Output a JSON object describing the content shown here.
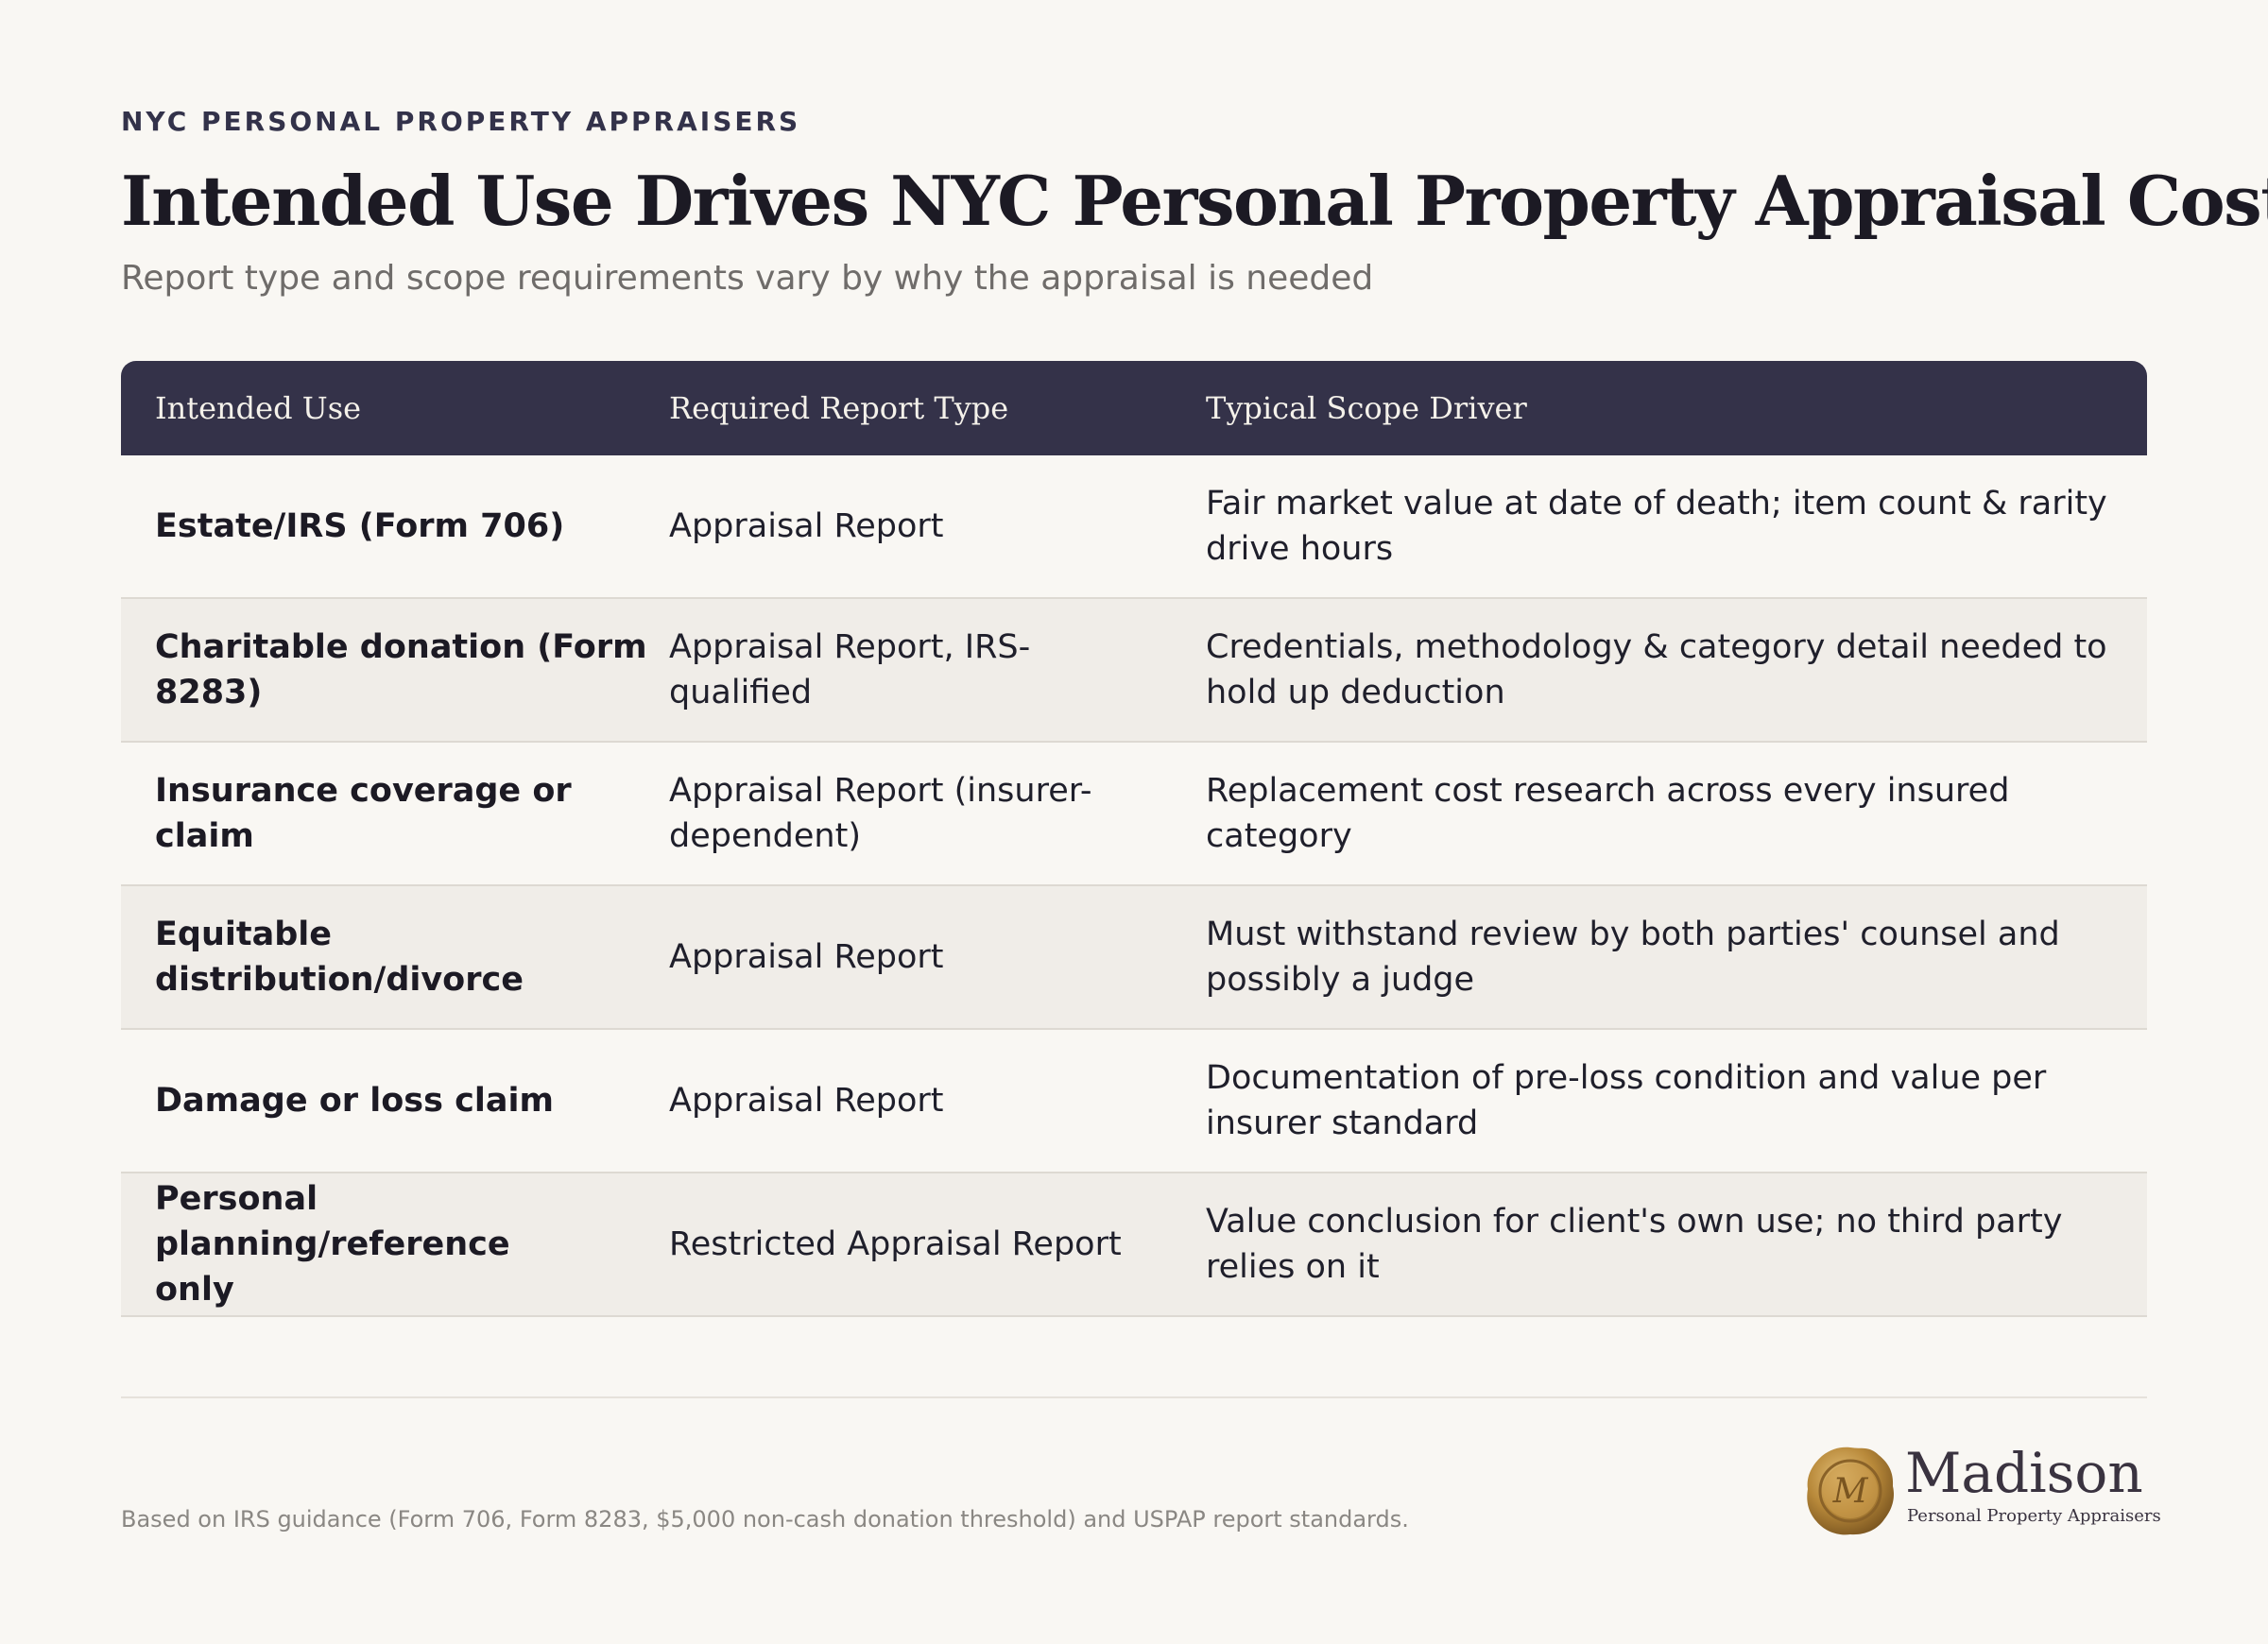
{
  "header": {
    "eyebrow": "NYC PERSONAL PROPERTY APPRAISERS",
    "title": "Intended Use Drives NYC Personal Property Appraisal Cost",
    "subtitle": "Report type and scope requirements vary by why the appraisal is needed"
  },
  "table": {
    "columns": [
      "Intended Use",
      "Required Report Type",
      "Typical Scope Driver"
    ],
    "rows": [
      {
        "use_lines": [
          "Estate/IRS (Form 706)"
        ],
        "type_lines": [
          "Appraisal Report"
        ],
        "scope_lines": [
          "Fair market value at date of death; item count & rarity",
          "drive hours"
        ]
      },
      {
        "use_lines": [
          "Charitable donation (Form",
          "8283)"
        ],
        "type_lines": [
          "Appraisal Report, IRS-",
          "qualified"
        ],
        "scope_lines": [
          "Credentials, methodology & category detail needed to",
          "hold up deduction"
        ]
      },
      {
        "use_lines": [
          "Insurance coverage or claim"
        ],
        "type_lines": [
          "Appraisal Report (insurer-",
          "dependent)"
        ],
        "scope_lines": [
          "Replacement cost research across every insured",
          "category"
        ]
      },
      {
        "use_lines": [
          "Equitable",
          "distribution/divorce"
        ],
        "type_lines": [
          "Appraisal Report"
        ],
        "scope_lines": [
          "Must withstand review by both parties' counsel and",
          "possibly a judge"
        ]
      },
      {
        "use_lines": [
          "Damage or loss claim"
        ],
        "type_lines": [
          "Appraisal Report"
        ],
        "scope_lines": [
          "Documentation of pre-loss condition and value per",
          "insurer standard"
        ]
      },
      {
        "use_lines": [
          "Personal planning/reference",
          "only"
        ],
        "type_lines": [
          "Restricted Appraisal Report"
        ],
        "scope_lines": [
          "Value conclusion for client's own use; no third party",
          "relies on it"
        ]
      }
    ]
  },
  "footer": {
    "note": "Based on IRS guidance (Form 706, Form 8283, $5,000 non-cash donation threshold) and USPAP report standards.",
    "logo_name": "Madison",
    "logo_tagline": "Personal Property Appraisers",
    "logo_monogram": "M"
  },
  "colors": {
    "background": "#f9f7f3",
    "header_bg": "#343249",
    "alt_row": "#f0ede8",
    "seal_gold": "#b8893a"
  }
}
